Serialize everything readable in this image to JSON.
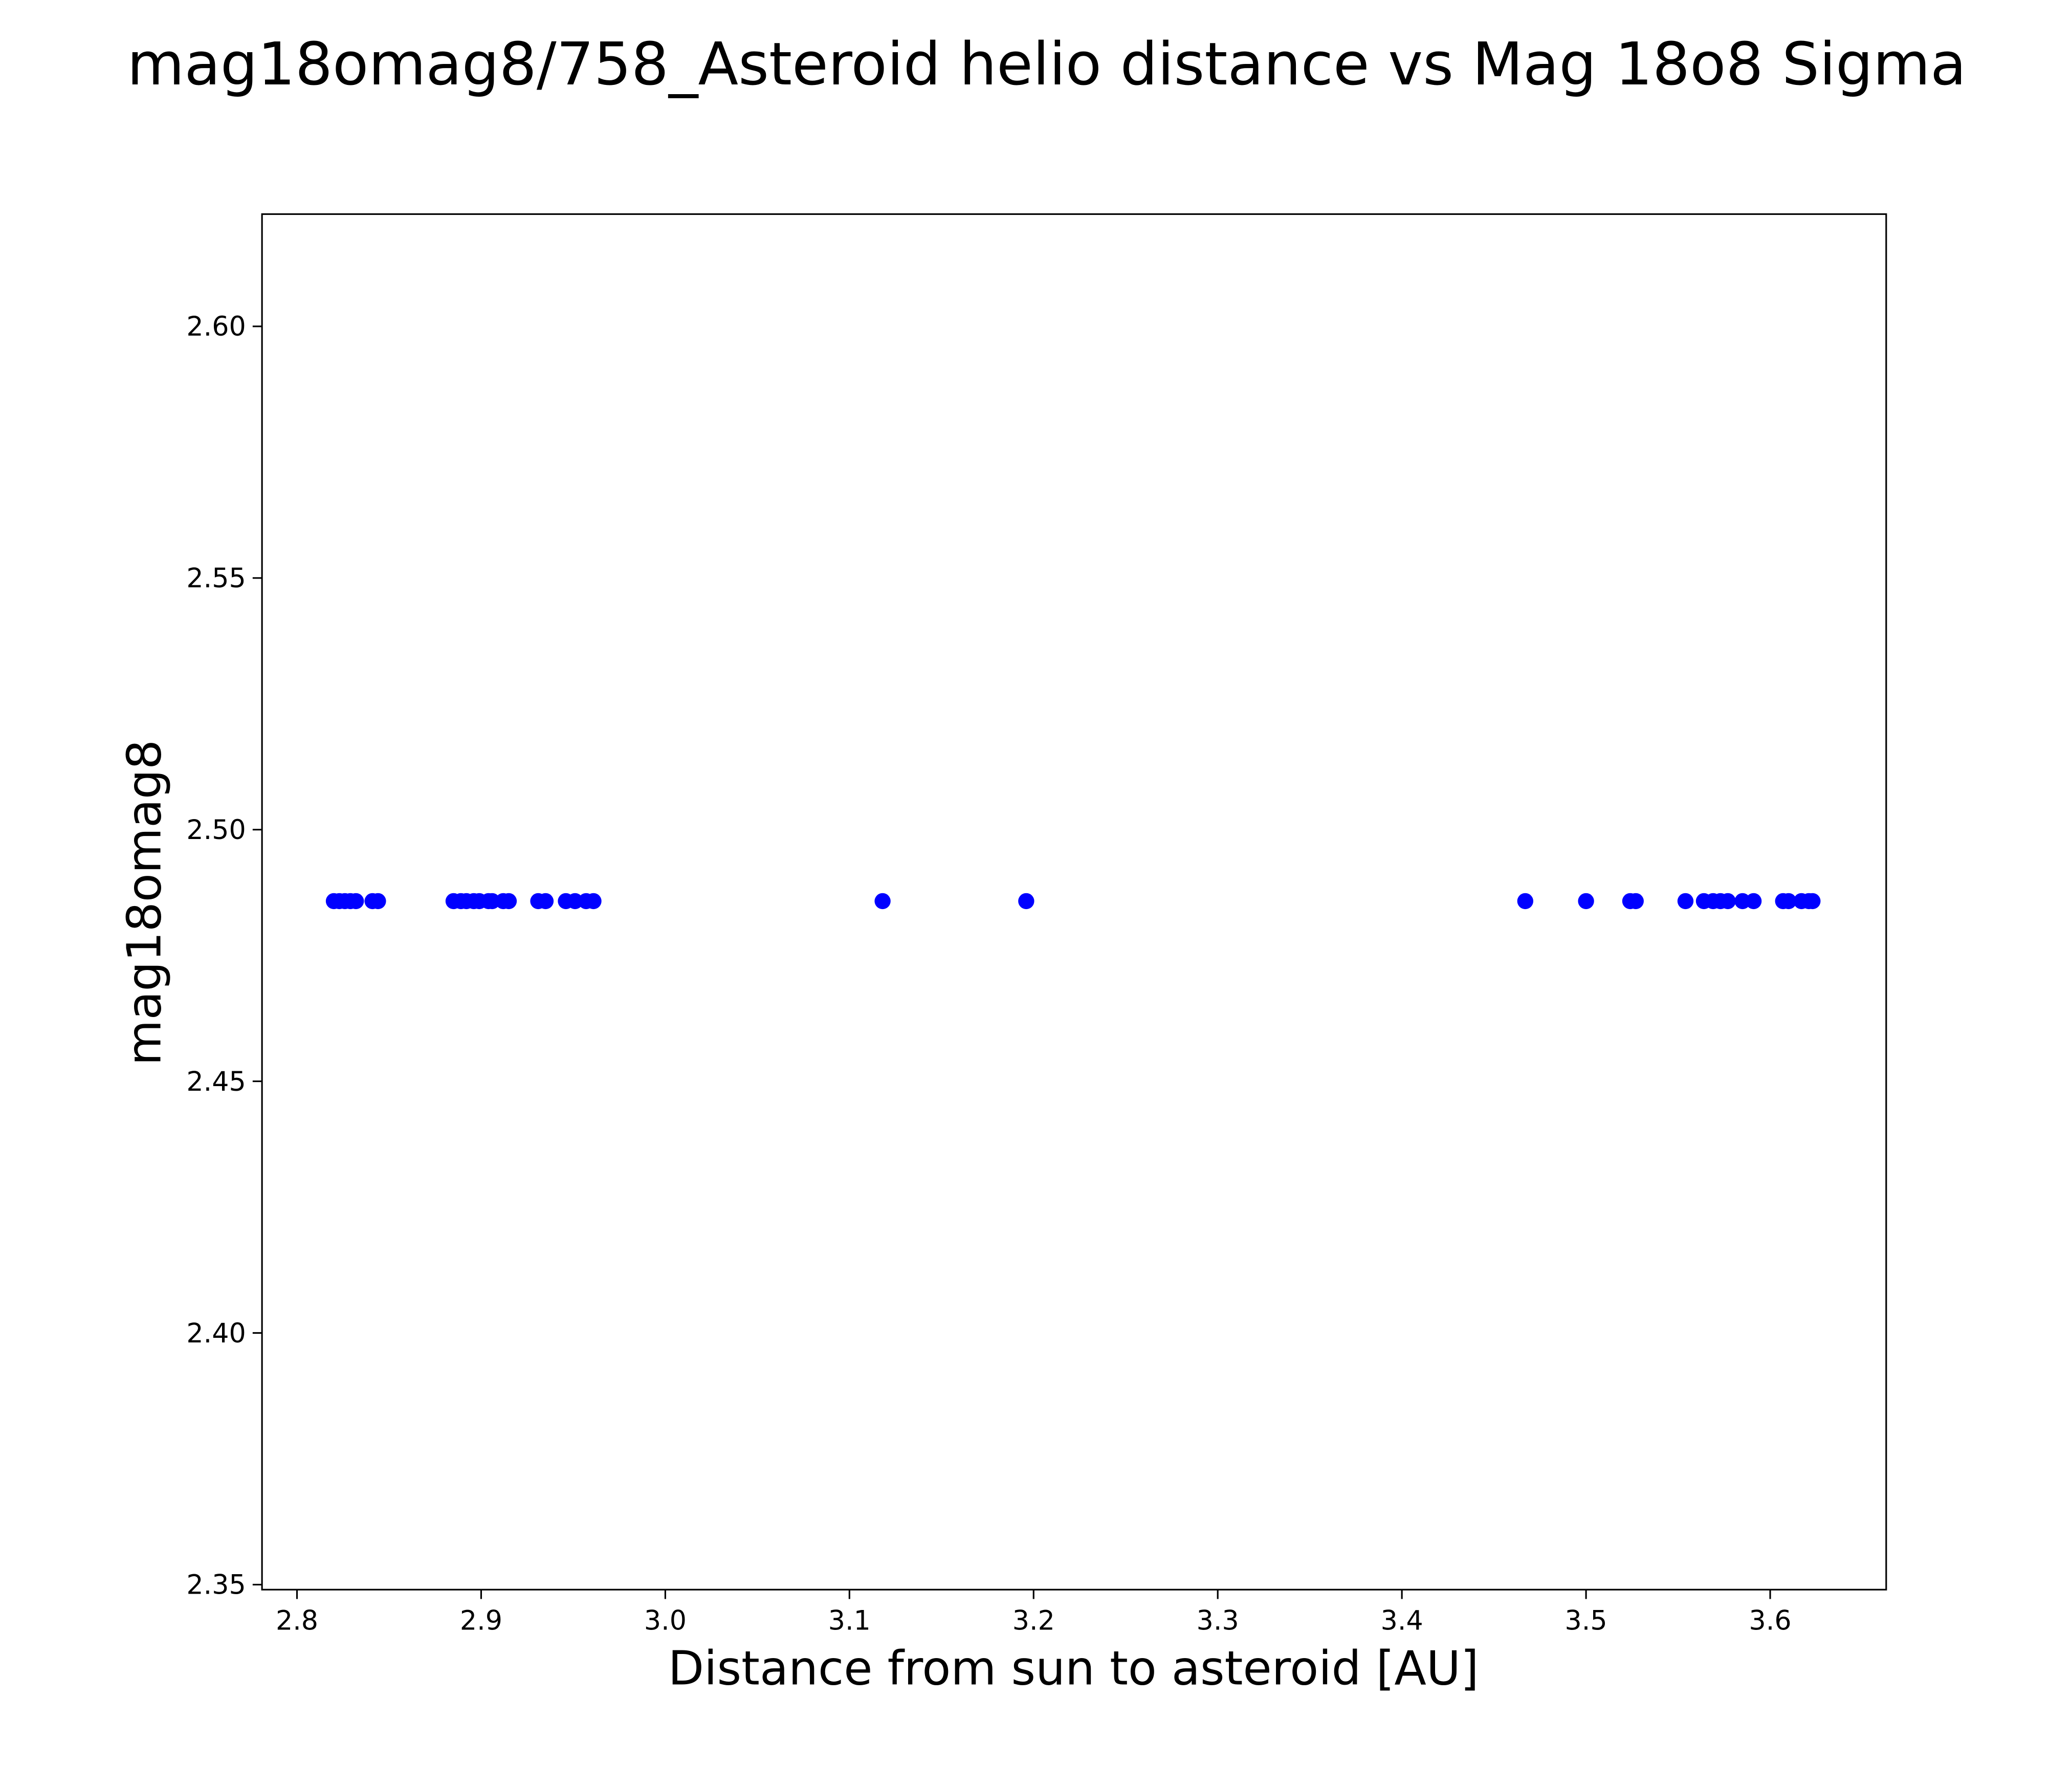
{
  "chart_data": {
    "type": "scatter",
    "title": "mag18omag8/758_Asteroid helio distance vs Mag 18o8 Sigma",
    "xlabel": "Distance from sun to asteroid [AU]",
    "ylabel": "mag18omag8",
    "xlim": [
      2.781,
      3.663
    ],
    "ylim": [
      2.349,
      2.6223
    ],
    "xticks": [
      "2.8",
      "2.9",
      "3.0",
      "3.1",
      "3.2",
      "3.3",
      "3.4",
      "3.5",
      "3.6"
    ],
    "yticks": [
      "2.35",
      "2.40",
      "2.45",
      "2.50",
      "2.55",
      "2.60"
    ],
    "grid": false,
    "marker_color": "#0000ff",
    "series": [
      {
        "name": "asteroid",
        "x": [
          2.82,
          2.823,
          2.826,
          2.829,
          2.832,
          2.841,
          2.844,
          2.885,
          2.889,
          2.892,
          2.896,
          2.899,
          2.904,
          2.906,
          2.912,
          2.915,
          2.931,
          2.935,
          2.946,
          2.951,
          2.957,
          2.961,
          3.118,
          3.196,
          3.467,
          3.5,
          3.524,
          3.527,
          3.554,
          3.564,
          3.569,
          3.573,
          3.577,
          3.585,
          3.591,
          3.607,
          3.61,
          3.617,
          3.621,
          3.623
        ],
        "y": 2.4858
      }
    ]
  }
}
